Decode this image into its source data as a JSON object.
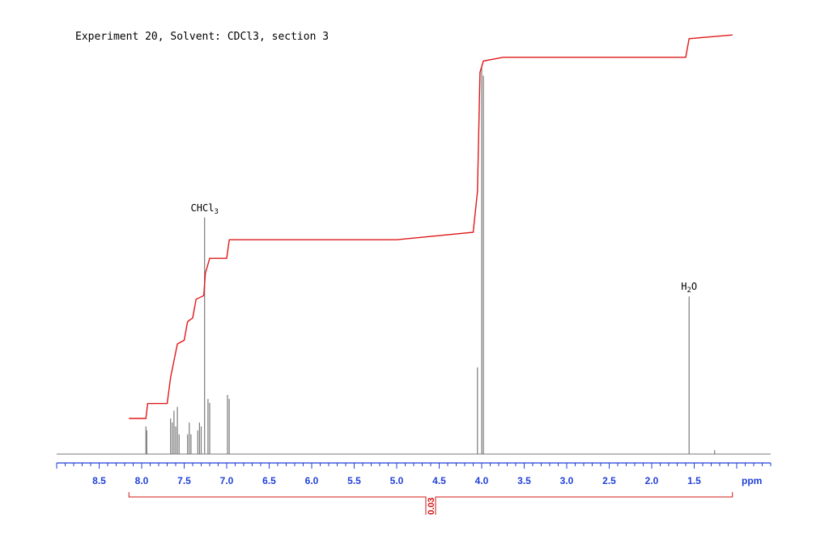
{
  "chart_data": {
    "type": "line",
    "title": "Experiment 20, Solvent: CDCl3, section 3",
    "xlabel": "ppm",
    "x_reversed": true,
    "xlim": [
      9.0,
      0.6
    ],
    "ticks": [
      8.5,
      8.0,
      7.5,
      7.0,
      6.5,
      6.0,
      5.5,
      5.0,
      4.5,
      4.0,
      3.5,
      3.0,
      2.5,
      2.0,
      1.5
    ],
    "tick_labels": [
      "8.5",
      "8.0",
      "7.5",
      "7.0",
      "6.5",
      "6.0",
      "5.5",
      "5.0",
      "4.5",
      "4.0",
      "3.5",
      "3.0",
      "2.5",
      "2.0",
      "1.5"
    ],
    "annotations": [
      {
        "text": "CHCl3",
        "main": "CHCl",
        "sub": "3",
        "x": 7.26
      },
      {
        "text": "H2O",
        "main": "H",
        "sub": "2",
        "tail": "O",
        "x": 1.56
      }
    ],
    "series": [
      {
        "peaks": [
          {
            "x": 7.95,
            "h": 0.07
          },
          {
            "x": 7.94,
            "h": 0.06
          },
          {
            "x": 7.66,
            "h": 0.09
          },
          {
            "x": 7.64,
            "h": 0.08
          },
          {
            "x": 7.62,
            "h": 0.11
          },
          {
            "x": 7.6,
            "h": 0.07
          },
          {
            "x": 7.58,
            "h": 0.12
          },
          {
            "x": 7.56,
            "h": 0.05
          },
          {
            "x": 7.46,
            "h": 0.05
          },
          {
            "x": 7.44,
            "h": 0.08
          },
          {
            "x": 7.42,
            "h": 0.05
          },
          {
            "x": 7.34,
            "h": 0.06
          },
          {
            "x": 7.32,
            "h": 0.08
          },
          {
            "x": 7.3,
            "h": 0.07
          },
          {
            "x": 7.26,
            "h": 0.6
          },
          {
            "x": 7.22,
            "h": 0.14
          },
          {
            "x": 7.2,
            "h": 0.13
          },
          {
            "x": 6.99,
            "h": 0.15
          },
          {
            "x": 6.97,
            "h": 0.14
          },
          {
            "x": 4.05,
            "h": 0.22
          },
          {
            "x": 4.0,
            "h": 0.98
          },
          {
            "x": 3.98,
            "h": 0.96
          },
          {
            "x": 1.56,
            "h": 0.4
          },
          {
            "x": 1.26,
            "h": 0.01
          }
        ]
      },
      {
        "integral": [
          [
            8.15,
            0.05
          ],
          [
            7.95,
            0.05
          ],
          [
            7.93,
            0.09
          ],
          [
            7.7,
            0.09
          ],
          [
            7.66,
            0.16
          ],
          [
            7.58,
            0.25
          ],
          [
            7.5,
            0.26
          ],
          [
            7.46,
            0.31
          ],
          [
            7.4,
            0.32
          ],
          [
            7.36,
            0.37
          ],
          [
            7.27,
            0.38
          ],
          [
            7.25,
            0.44
          ],
          [
            7.2,
            0.48
          ],
          [
            7.0,
            0.48
          ],
          [
            6.97,
            0.53
          ],
          [
            5.0,
            0.53
          ],
          [
            4.1,
            0.55
          ],
          [
            4.05,
            0.66
          ],
          [
            4.02,
            0.98
          ],
          [
            3.98,
            1.01
          ],
          [
            3.75,
            1.02
          ],
          [
            1.6,
            1.02
          ],
          [
            1.56,
            1.07
          ],
          [
            1.05,
            1.08
          ]
        ]
      }
    ],
    "integral_region": {
      "from": 8.15,
      "to": 1.05,
      "value": "0.03"
    },
    "colors": {
      "spectrum": "#7a7a7a",
      "integral": "#e01818",
      "axis": "#1f3fd6",
      "region": "#d21414"
    }
  }
}
